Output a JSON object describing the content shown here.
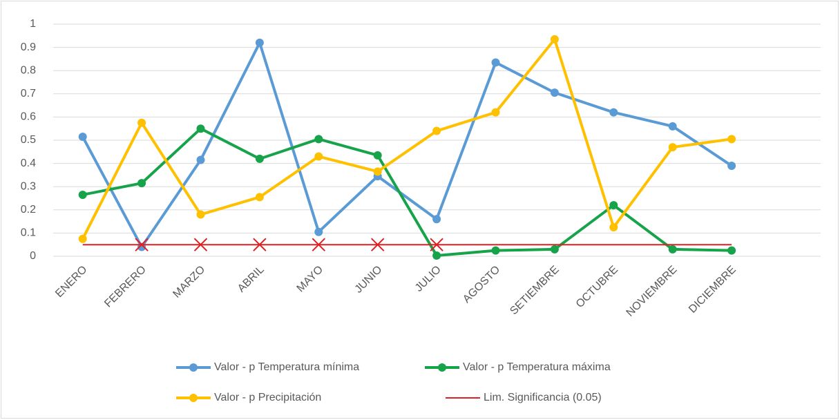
{
  "chart_data": {
    "type": "line",
    "categories": [
      "ENERO",
      "FEBRERO",
      "MARZO",
      "ABRIL",
      "MAYO",
      "JUNIO",
      "JULIO",
      "AGOSTO",
      "SETIEMBRE",
      "OCTUBRE",
      "NOVIEMBRE",
      "DICIEMBRE"
    ],
    "series": [
      {
        "name": "Valor - p Temperatura mínima",
        "color": "#5b9bd5",
        "marker": "circle",
        "values": [
          0.515,
          0.04,
          0.415,
          0.92,
          0.105,
          0.345,
          0.16,
          0.835,
          0.705,
          0.62,
          0.56,
          0.39
        ]
      },
      {
        "name": "Valor - p Temperatura máxima",
        "color": "#16a34a",
        "marker": "circle",
        "values": [
          0.265,
          0.315,
          0.55,
          0.42,
          0.505,
          0.435,
          0.003,
          0.025,
          0.03,
          0.22,
          0.03,
          0.025
        ]
      },
      {
        "name": "Valor - p Precipitación",
        "color": "#ffc000",
        "marker": "circle",
        "values": [
          0.075,
          0.575,
          0.18,
          0.255,
          0.43,
          0.365,
          0.54,
          0.62,
          0.935,
          0.125,
          0.47,
          0.505
        ]
      },
      {
        "name": "Lim. Significancia (0.05)",
        "color": "#e02020",
        "marker": "cross",
        "markers": [
          false,
          true,
          true,
          true,
          true,
          true,
          true,
          false,
          false,
          false,
          false,
          false
        ],
        "values": [
          0.05,
          0.05,
          0.05,
          0.05,
          0.05,
          0.05,
          0.05,
          0.05,
          0.05,
          0.05,
          0.05,
          0.05
        ]
      }
    ],
    "ylim": [
      0,
      1
    ],
    "yticks": [
      0,
      0.1,
      0.2,
      0.3,
      0.4,
      0.5,
      0.6,
      0.7,
      0.8,
      0.9,
      1
    ],
    "grid": true,
    "legend": "bottom"
  }
}
